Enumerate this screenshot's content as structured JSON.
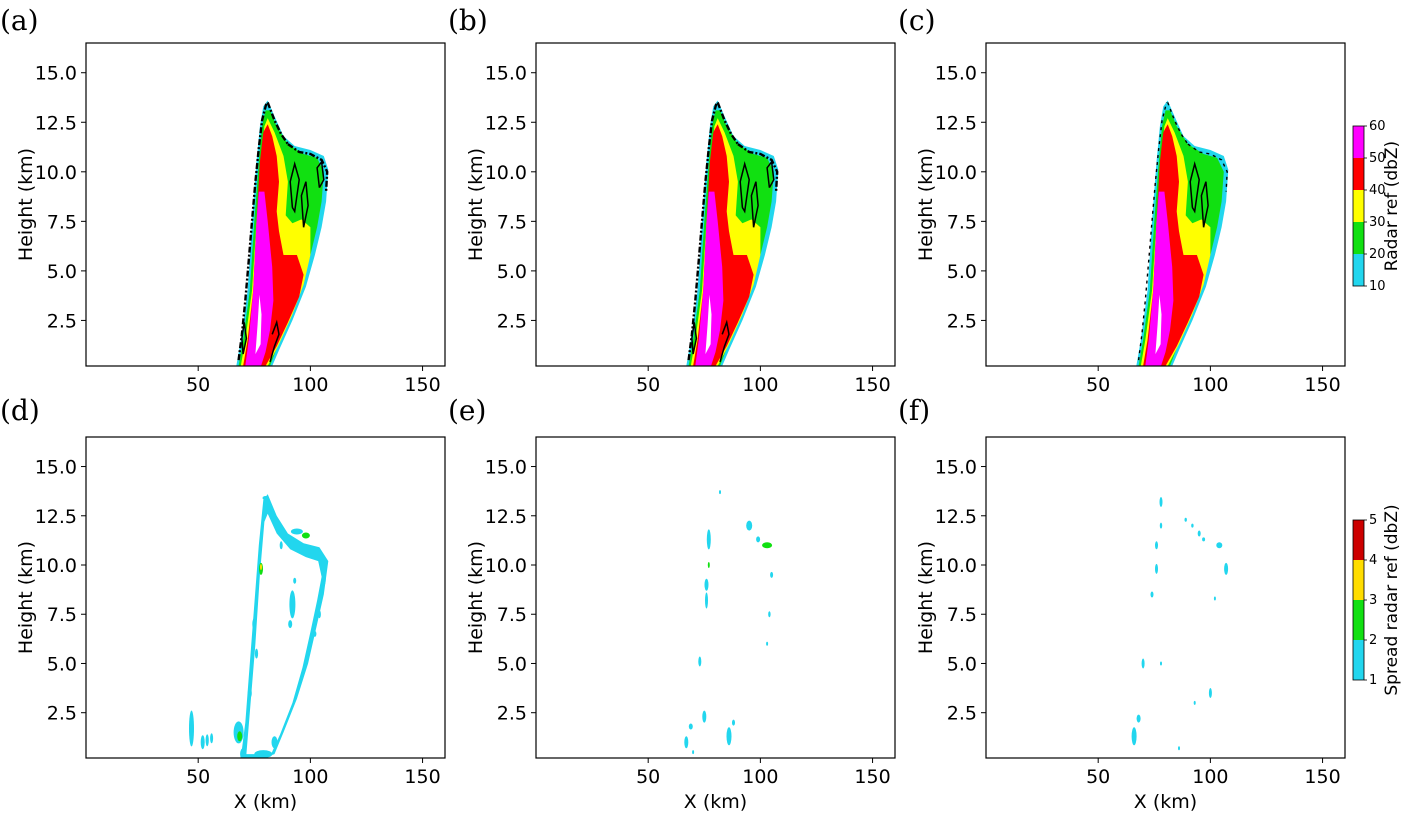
{
  "chart_data": [
    {
      "type": "contour",
      "panel": "(a)",
      "title": "",
      "xlabel": "",
      "ylabel": "Height (km)",
      "xlim": [
        0,
        160
      ],
      "ylim": [
        0.2,
        16.5
      ],
      "xticks": [
        "50",
        "100",
        "150"
      ],
      "yticks": [
        "2.5",
        "5.0",
        "7.5",
        "10.0",
        "12.5",
        "15.0"
      ],
      "field": "radar_ref",
      "shading_levels": [
        10,
        20,
        30,
        40,
        50,
        60
      ],
      "black_contours": "heavy"
    },
    {
      "type": "contour",
      "panel": "(b)",
      "title": "",
      "xlabel": "",
      "ylabel": "Height (km)",
      "xlim": [
        0,
        160
      ],
      "ylim": [
        0.2,
        16.5
      ],
      "xticks": [
        "50",
        "100",
        "150"
      ],
      "yticks": [
        "2.5",
        "5.0",
        "7.5",
        "10.0",
        "12.5",
        "15.0"
      ],
      "field": "radar_ref",
      "shading_levels": [
        10,
        20,
        30,
        40,
        50,
        60
      ],
      "black_contours": "heavy"
    },
    {
      "type": "contour",
      "panel": "(c)",
      "title": "",
      "xlabel": "",
      "ylabel": "Height (km)",
      "xlim": [
        0,
        160
      ],
      "ylim": [
        0.2,
        16.5
      ],
      "xticks": [
        "50",
        "100",
        "150"
      ],
      "yticks": [
        "2.5",
        "5.0",
        "7.5",
        "10.0",
        "12.5",
        "15.0"
      ],
      "field": "radar_ref",
      "shading_levels": [
        10,
        20,
        30,
        40,
        50,
        60
      ],
      "black_contours": "light"
    },
    {
      "type": "contour",
      "panel": "(d)",
      "title": "",
      "xlabel": "X (km)",
      "ylabel": "Height (km)",
      "xlim": [
        0,
        160
      ],
      "ylim": [
        0.2,
        16.5
      ],
      "xticks": [
        "50",
        "100",
        "150"
      ],
      "yticks": [
        "2.5",
        "5.0",
        "7.5",
        "10.0",
        "12.5",
        "15.0"
      ],
      "field": "spread_radar_ref",
      "shading_levels": [
        1,
        2,
        3,
        4,
        5
      ],
      "spread_level": "large"
    },
    {
      "type": "contour",
      "panel": "(e)",
      "title": "",
      "xlabel": "X (km)",
      "ylabel": "Height (km)",
      "xlim": [
        0,
        160
      ],
      "ylim": [
        0.2,
        16.5
      ],
      "xticks": [
        "50",
        "100",
        "150"
      ],
      "yticks": [
        "2.5",
        "5.0",
        "7.5",
        "10.0",
        "12.5",
        "15.0"
      ],
      "field": "spread_radar_ref",
      "shading_levels": [
        1,
        2,
        3,
        4,
        5
      ],
      "spread_level": "small"
    },
    {
      "type": "contour",
      "panel": "(f)",
      "title": "",
      "xlabel": "X (km)",
      "ylabel": "Height (km)",
      "xlim": [
        0,
        160
      ],
      "ylim": [
        0.2,
        16.5
      ],
      "xticks": [
        "50",
        "100",
        "150"
      ],
      "yticks": [
        "2.5",
        "5.0",
        "7.5",
        "10.0",
        "12.5",
        "15.0"
      ],
      "field": "spread_radar_ref",
      "shading_levels": [
        1,
        2,
        3,
        4,
        5
      ],
      "spread_level": "minimal"
    }
  ],
  "colorbars": {
    "ref": {
      "label": "Radar ref (dbZ)",
      "ticks": [
        "10",
        "20",
        "30",
        "40",
        "50",
        "60"
      ],
      "colors": [
        "#22d6ee",
        "#11e011",
        "#ffff00",
        "#ff0000",
        "#ff00ff"
      ]
    },
    "spread": {
      "label": "Spread radar ref (dbZ)",
      "ticks": [
        "1",
        "2",
        "3",
        "4",
        "5"
      ],
      "colors": [
        "#22d6ee",
        "#11e011",
        "#ffdd00",
        "#cc0000"
      ]
    }
  },
  "colors": {
    "cyan": "#22d6ee",
    "green": "#11e011",
    "yellow": "#ffff00",
    "red": "#ff0000",
    "magenta": "#ff00ff",
    "spread_yellow": "#ffdd00",
    "spread_red": "#cc0000"
  }
}
